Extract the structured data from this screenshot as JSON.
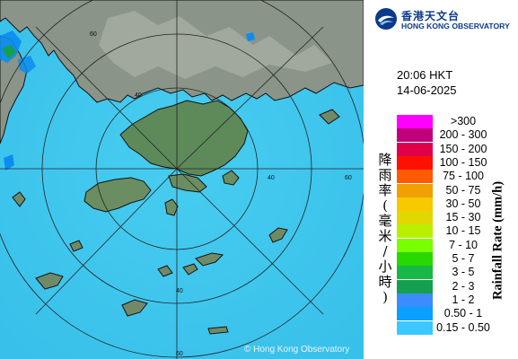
{
  "map": {
    "ring_labels": [
      "60",
      "60",
      "60",
      "40",
      "40",
      "40"
    ],
    "copyright": "© Hong Kong Observatory",
    "colors": {
      "sea": "#40c8f0",
      "land": "#808c80",
      "border": "#101010",
      "rings": "#222222",
      "rain_light": "#0a8cf0"
    }
  },
  "logo": {
    "name_zh": "香港天文台",
    "name_en": "HONG KONG OBSERVATORY",
    "icon": "hko-logo-icon"
  },
  "timestamp": {
    "time": "20:06 HKT",
    "date": "14-06-2025"
  },
  "legend": {
    "title_zh": "降雨率(毫米/小時)",
    "title_en": "Rainfall Rate (mm/h)",
    "bins": [
      {
        "label": ">300",
        "color": "#ff00ff"
      },
      {
        "label": "200 - 300",
        "color": "#c0007a"
      },
      {
        "label": "150 - 200",
        "color": "#e0004a"
      },
      {
        "label": "100 - 150",
        "color": "#ff1000"
      },
      {
        "label": "75 - 100",
        "color": "#ff5a00"
      },
      {
        "label": "50 - 75",
        "color": "#f0a000"
      },
      {
        "label": "30 - 50",
        "color": "#f8c800"
      },
      {
        "label": "15 - 30",
        "color": "#e0d800"
      },
      {
        "label": "10 - 15",
        "color": "#b8f000"
      },
      {
        "label": "7 - 10",
        "color": "#78ff00"
      },
      {
        "label": "5 - 7",
        "color": "#28d800"
      },
      {
        "label": "3 - 5",
        "color": "#18b848"
      },
      {
        "label": "2 - 3",
        "color": "#14a050"
      },
      {
        "label": "1 - 2",
        "color": "#3c8cff"
      },
      {
        "label": "0.50 - 1",
        "color": "#0aa0ff"
      },
      {
        "label": "0.15 - 0.50",
        "color": "#3cc8ff"
      }
    ]
  }
}
